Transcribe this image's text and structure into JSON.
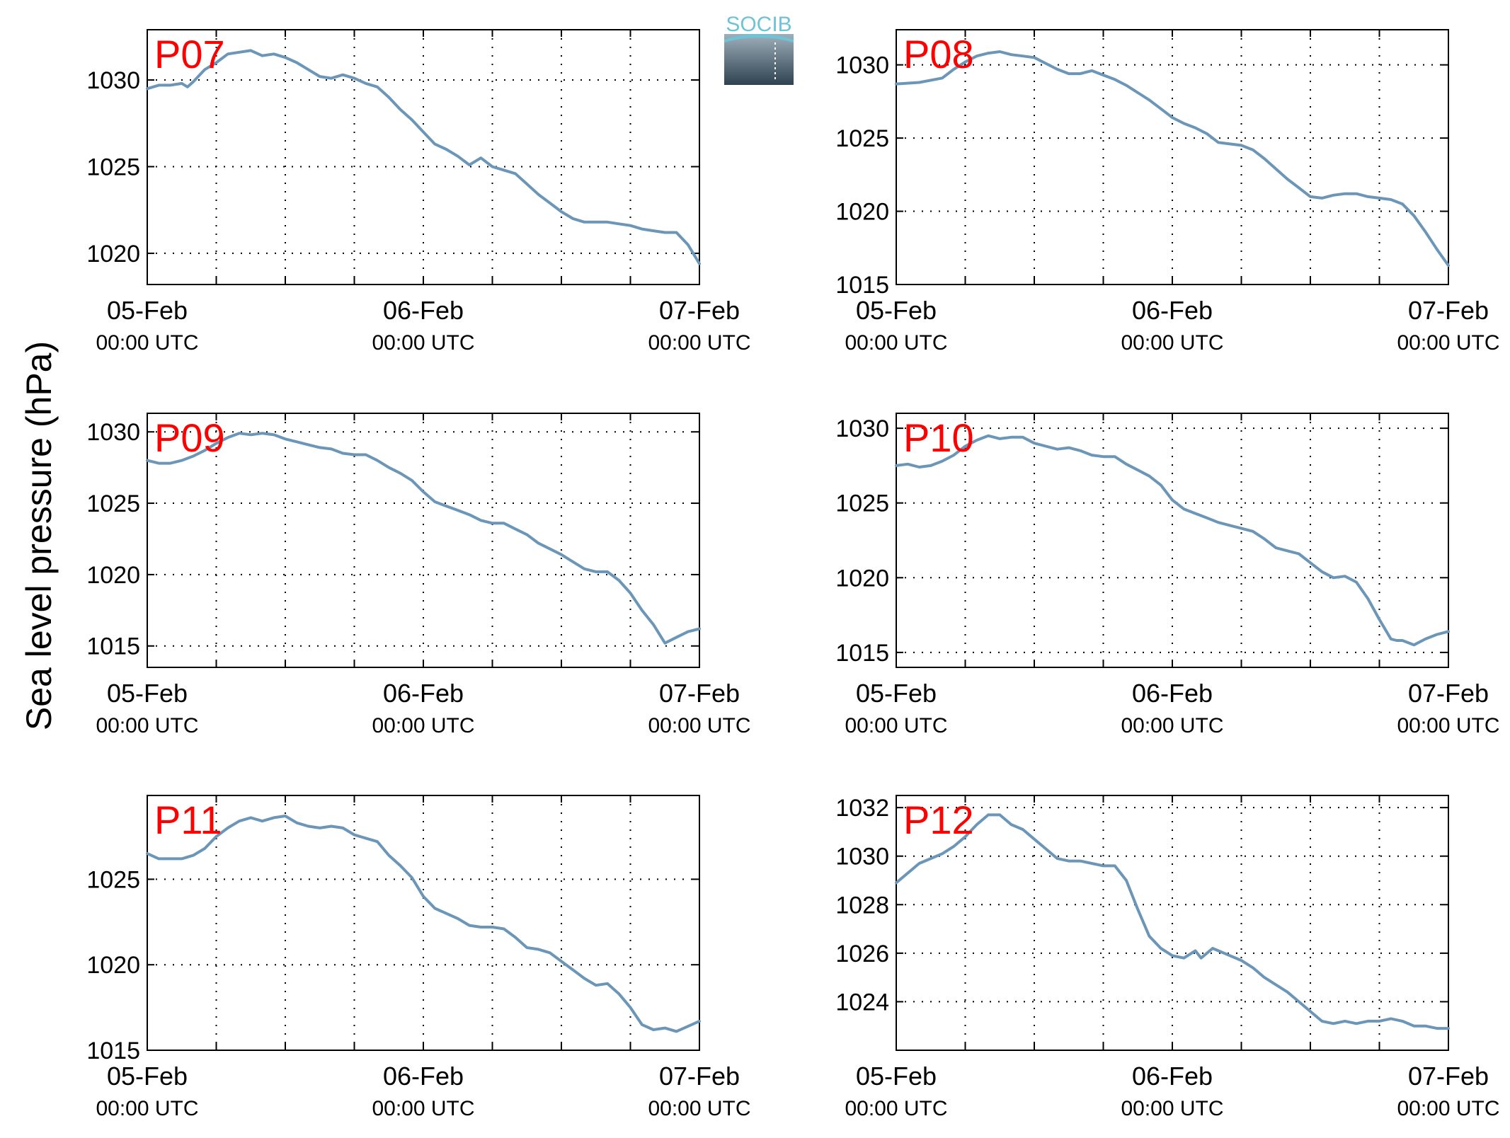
{
  "figure": {
    "ylabel": "Sea level pressure (hPa)",
    "logo_text": "SOCIB",
    "colors": {
      "line": "#6b96b8",
      "panel_label": "#ff0000",
      "axis": "#000000",
      "grid": "#000000",
      "logo_top": "#6ec3d6",
      "logo_bottom": "#2e4250"
    }
  },
  "chart_data": [
    {
      "type": "line",
      "title": "P07",
      "x_ticks": [
        {
          "date": "05-Feb",
          "time": "00:00 UTC"
        },
        {
          "date": "06-Feb",
          "time": "00:00 UTC"
        },
        {
          "date": "07-Feb",
          "time": "00:00 UTC"
        }
      ],
      "xlim_hours": [
        0,
        48
      ],
      "grid_hours": [
        6,
        12,
        18,
        24,
        30,
        36,
        42
      ],
      "ylim": [
        1018.2,
        1032.9
      ],
      "yticks": [
        1020,
        1025,
        1030
      ],
      "grid": true,
      "series": [
        {
          "x_hours": [
            0,
            1,
            2,
            3,
            3.5,
            4,
            5,
            6,
            7,
            8,
            9,
            10,
            11,
            12,
            13,
            14,
            15,
            16,
            17,
            18,
            19,
            20,
            21,
            22,
            23,
            24,
            25,
            26,
            27,
            28,
            29,
            30,
            31,
            32,
            33,
            34,
            35,
            36,
            37,
            38,
            39,
            40,
            41,
            42,
            43,
            44,
            45,
            46,
            47,
            48
          ],
          "values": [
            1029.5,
            1029.7,
            1029.7,
            1029.8,
            1029.6,
            1029.9,
            1030.6,
            1031.0,
            1031.5,
            1031.6,
            1031.7,
            1031.4,
            1031.5,
            1031.3,
            1031.0,
            1030.6,
            1030.2,
            1030.1,
            1030.3,
            1030.1,
            1029.8,
            1029.6,
            1029.0,
            1028.3,
            1027.7,
            1027.0,
            1026.3,
            1026.0,
            1025.6,
            1025.1,
            1025.5,
            1025.0,
            1024.8,
            1024.6,
            1024.0,
            1023.4,
            1022.9,
            1022.4,
            1022.0,
            1021.8,
            1021.8,
            1021.8,
            1021.7,
            1021.6,
            1021.4,
            1021.3,
            1021.2,
            1021.2,
            1020.5,
            1019.4
          ]
        }
      ]
    },
    {
      "type": "line",
      "title": "P08",
      "x_ticks": [
        {
          "date": "05-Feb",
          "time": "00:00 UTC"
        },
        {
          "date": "06-Feb",
          "time": "00:00 UTC"
        },
        {
          "date": "07-Feb",
          "time": "00:00 UTC"
        }
      ],
      "xlim_hours": [
        0,
        48
      ],
      "grid_hours": [
        6,
        12,
        18,
        24,
        30,
        36,
        42
      ],
      "ylim": [
        1015.0,
        1032.4
      ],
      "yticks": [
        1015,
        1020,
        1025,
        1030
      ],
      "grid": true,
      "series": [
        {
          "x_hours": [
            0,
            2,
            4,
            5,
            6,
            7,
            8,
            9,
            10,
            11,
            12,
            13,
            14,
            15,
            16,
            17,
            18,
            19,
            20,
            21,
            22,
            23,
            24,
            25,
            26,
            27,
            28,
            29,
            30,
            31,
            32,
            33,
            34,
            35,
            36,
            37,
            38,
            39,
            40,
            41,
            42,
            43,
            44,
            45,
            46,
            47,
            48
          ],
          "values": [
            1028.7,
            1028.8,
            1029.1,
            1029.7,
            1030.2,
            1030.6,
            1030.8,
            1030.9,
            1030.7,
            1030.6,
            1030.5,
            1030.1,
            1029.7,
            1029.4,
            1029.4,
            1029.6,
            1029.3,
            1029.0,
            1028.6,
            1028.1,
            1027.6,
            1027.0,
            1026.4,
            1026.0,
            1025.7,
            1025.3,
            1024.7,
            1024.6,
            1024.5,
            1024.2,
            1023.6,
            1022.9,
            1022.2,
            1021.6,
            1021.0,
            1020.9,
            1021.1,
            1021.2,
            1021.2,
            1021.0,
            1020.9,
            1020.8,
            1020.5,
            1019.7,
            1018.6,
            1017.4,
            1016.3
          ]
        }
      ]
    },
    {
      "type": "line",
      "title": "P09",
      "x_ticks": [
        {
          "date": "05-Feb",
          "time": "00:00 UTC"
        },
        {
          "date": "06-Feb",
          "time": "00:00 UTC"
        },
        {
          "date": "07-Feb",
          "time": "00:00 UTC"
        }
      ],
      "xlim_hours": [
        0,
        48
      ],
      "grid_hours": [
        6,
        12,
        18,
        24,
        30,
        36,
        42
      ],
      "ylim": [
        1013.5,
        1031.3
      ],
      "yticks": [
        1015,
        1020,
        1025,
        1030
      ],
      "grid": true,
      "series": [
        {
          "x_hours": [
            0,
            1,
            2,
            3,
            4,
            5,
            6,
            7,
            8,
            9,
            10,
            11,
            12,
            13,
            14,
            15,
            16,
            17,
            18,
            19,
            20,
            21,
            22,
            23,
            24,
            25,
            26,
            27,
            28,
            29,
            30,
            31,
            32,
            33,
            34,
            35,
            36,
            37,
            38,
            39,
            40,
            41,
            42,
            43,
            44,
            45,
            46,
            47,
            48
          ],
          "values": [
            1028.0,
            1027.8,
            1027.8,
            1028.0,
            1028.3,
            1028.7,
            1029.2,
            1029.6,
            1029.9,
            1029.8,
            1029.9,
            1029.8,
            1029.5,
            1029.3,
            1029.1,
            1028.9,
            1028.8,
            1028.5,
            1028.4,
            1028.4,
            1028.0,
            1027.5,
            1027.1,
            1026.6,
            1025.8,
            1025.1,
            1024.8,
            1024.5,
            1024.2,
            1023.8,
            1023.6,
            1023.6,
            1023.2,
            1022.8,
            1022.2,
            1021.8,
            1021.4,
            1020.9,
            1020.4,
            1020.2,
            1020.2,
            1019.6,
            1018.7,
            1017.5,
            1016.5,
            1015.2,
            1015.6,
            1016.0,
            1016.2
          ]
        }
      ]
    },
    {
      "type": "line",
      "title": "P10",
      "x_ticks": [
        {
          "date": "05-Feb",
          "time": "00:00 UTC"
        },
        {
          "date": "06-Feb",
          "time": "00:00 UTC"
        },
        {
          "date": "07-Feb",
          "time": "00:00 UTC"
        }
      ],
      "xlim_hours": [
        0,
        48
      ],
      "grid_hours": [
        6,
        12,
        18,
        24,
        30,
        36,
        42
      ],
      "ylim": [
        1014.0,
        1031.0
      ],
      "yticks": [
        1015,
        1020,
        1025,
        1030
      ],
      "grid": true,
      "series": [
        {
          "x_hours": [
            0,
            1,
            2,
            3,
            4,
            5,
            6,
            7,
            8,
            9,
            10,
            11,
            12,
            13,
            14,
            15,
            16,
            17,
            18,
            19,
            20,
            21,
            22,
            23,
            24,
            25,
            26,
            27,
            28,
            29,
            30,
            31,
            32,
            33,
            34,
            35,
            36,
            37,
            38,
            39,
            40,
            41,
            42,
            43,
            43.5,
            44,
            45,
            46,
            47,
            48
          ],
          "values": [
            1027.5,
            1027.6,
            1027.4,
            1027.5,
            1027.8,
            1028.2,
            1028.8,
            1029.2,
            1029.5,
            1029.3,
            1029.4,
            1029.4,
            1029.0,
            1028.8,
            1028.6,
            1028.7,
            1028.5,
            1028.2,
            1028.1,
            1028.1,
            1027.6,
            1027.2,
            1026.8,
            1026.2,
            1025.2,
            1024.6,
            1024.3,
            1024.0,
            1023.7,
            1023.5,
            1023.3,
            1023.1,
            1022.6,
            1022.0,
            1021.8,
            1021.6,
            1021.0,
            1020.4,
            1020.0,
            1020.1,
            1019.7,
            1018.6,
            1017.2,
            1015.9,
            1015.8,
            1015.8,
            1015.5,
            1015.9,
            1016.2,
            1016.4
          ]
        }
      ]
    },
    {
      "type": "line",
      "title": "P11",
      "x_ticks": [
        {
          "date": "05-Feb",
          "time": "00:00 UTC"
        },
        {
          "date": "06-Feb",
          "time": "00:00 UTC"
        },
        {
          "date": "07-Feb",
          "time": "00:00 UTC"
        }
      ],
      "xlim_hours": [
        0,
        48
      ],
      "grid_hours": [
        6,
        12,
        18,
        24,
        30,
        36,
        42
      ],
      "ylim": [
        1015.0,
        1029.9
      ],
      "yticks": [
        1015,
        1020,
        1025
      ],
      "grid": true,
      "series": [
        {
          "x_hours": [
            0,
            1,
            2,
            3,
            4,
            5,
            6,
            7,
            8,
            9,
            10,
            11,
            12,
            13,
            14,
            15,
            16,
            17,
            18,
            19,
            20,
            21,
            22,
            23,
            24,
            25,
            26,
            27,
            28,
            29,
            30,
            31,
            32,
            33,
            34,
            35,
            36,
            37,
            38,
            39,
            40,
            41,
            42,
            43,
            44,
            45,
            46,
            47,
            48
          ],
          "values": [
            1026.5,
            1026.2,
            1026.2,
            1026.2,
            1026.4,
            1026.8,
            1027.5,
            1028.0,
            1028.4,
            1028.6,
            1028.4,
            1028.6,
            1028.7,
            1028.3,
            1028.1,
            1028.0,
            1028.1,
            1028.0,
            1027.6,
            1027.4,
            1027.2,
            1026.4,
            1025.8,
            1025.1,
            1024.0,
            1023.3,
            1023.0,
            1022.7,
            1022.3,
            1022.2,
            1022.2,
            1022.1,
            1021.6,
            1021.0,
            1020.9,
            1020.7,
            1020.2,
            1019.7,
            1019.2,
            1018.8,
            1018.9,
            1018.3,
            1017.5,
            1016.5,
            1016.2,
            1016.3,
            1016.1,
            1016.4,
            1016.7
          ]
        }
      ]
    },
    {
      "type": "line",
      "title": "P12",
      "x_ticks": [
        {
          "date": "05-Feb",
          "time": "00:00 UTC"
        },
        {
          "date": "06-Feb",
          "time": "00:00 UTC"
        },
        {
          "date": "07-Feb",
          "time": "00:00 UTC"
        }
      ],
      "xlim_hours": [
        0,
        48
      ],
      "grid_hours": [
        6,
        12,
        18,
        24,
        30,
        36,
        42
      ],
      "ylim": [
        1022.0,
        1032.5
      ],
      "yticks": [
        1024,
        1026,
        1028,
        1030,
        1032
      ],
      "grid": true,
      "series": [
        {
          "x_hours": [
            0,
            1,
            2,
            3,
            4,
            5,
            6,
            7,
            8,
            9,
            10,
            11,
            12,
            13,
            14,
            15,
            16,
            17,
            18,
            19,
            20,
            21,
            22,
            23,
            24,
            25,
            26,
            26.5,
            27,
            27.5,
            28,
            29,
            30,
            31,
            32,
            33,
            34,
            35,
            36,
            37,
            38,
            39,
            40,
            41,
            42,
            43,
            44,
            45,
            46,
            47,
            48
          ],
          "values": [
            1028.9,
            1029.3,
            1029.7,
            1029.9,
            1030.1,
            1030.4,
            1030.8,
            1031.3,
            1031.7,
            1031.7,
            1031.3,
            1031.1,
            1030.7,
            1030.3,
            1029.9,
            1029.8,
            1029.8,
            1029.7,
            1029.6,
            1029.6,
            1029.0,
            1027.8,
            1026.7,
            1026.2,
            1025.9,
            1025.8,
            1026.1,
            1025.8,
            1026.0,
            1026.2,
            1026.1,
            1025.9,
            1025.7,
            1025.4,
            1025.0,
            1024.7,
            1024.4,
            1024.0,
            1023.6,
            1023.2,
            1023.1,
            1023.2,
            1023.1,
            1023.2,
            1023.2,
            1023.3,
            1023.2,
            1023.0,
            1023.0,
            1022.9,
            1022.9
          ]
        }
      ]
    }
  ]
}
